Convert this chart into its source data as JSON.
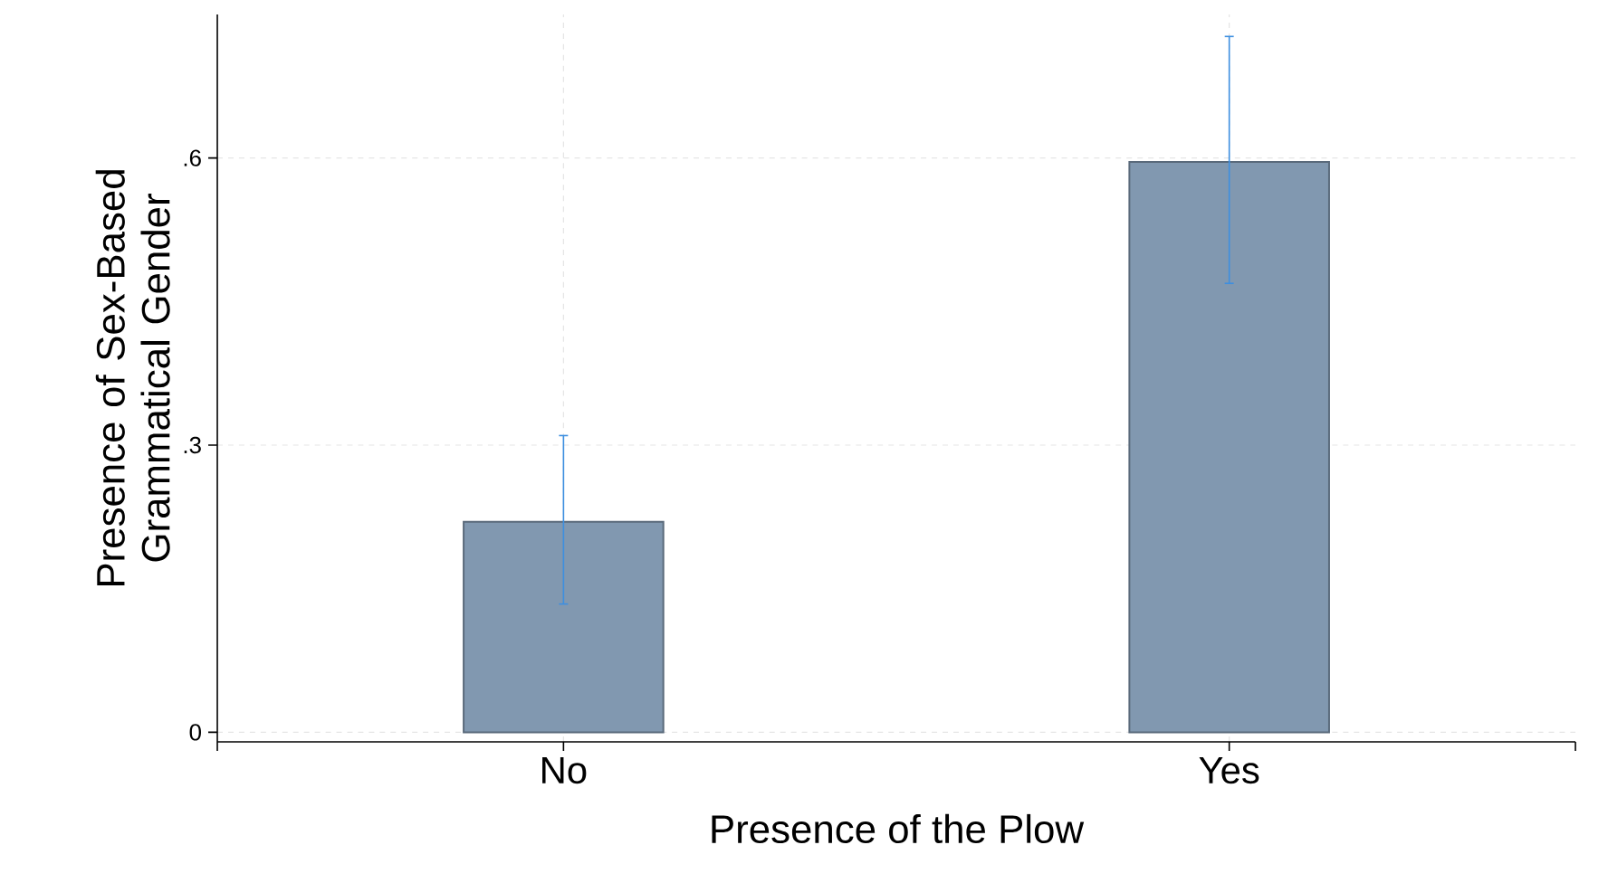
{
  "chart_data": {
    "type": "bar",
    "xlabel": "Presence of the Plow",
    "ylabel": "Presence of Sex-Based Grammatical Gender",
    "categories": [
      "No",
      "Yes"
    ],
    "values": [
      0.22,
      0.596
    ],
    "errors": [
      [
        0.134,
        0.31
      ],
      [
        0.469,
        0.727
      ]
    ],
    "color": "#8198b0",
    "ylim": [
      -0.01,
      0.75
    ],
    "yticks": [
      {
        "value": 0,
        "label": "0"
      },
      {
        "value": 0.3,
        "label": ".3"
      },
      {
        "value": 0.6,
        "label": ".6"
      }
    ],
    "grid": true
  }
}
